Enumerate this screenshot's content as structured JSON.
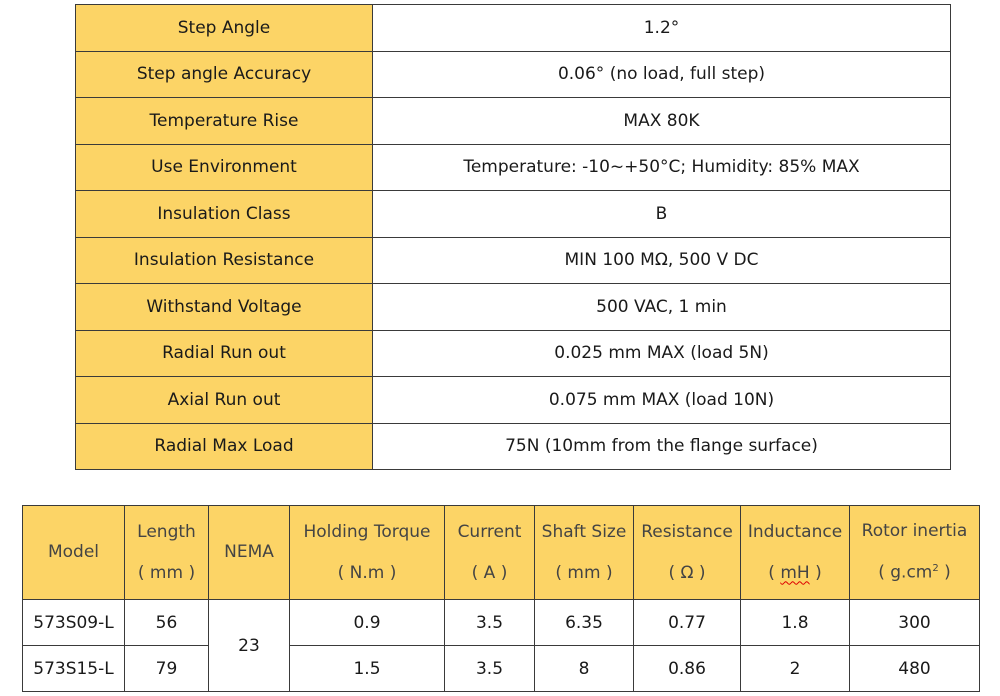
{
  "specs": [
    {
      "label": "Step Angle",
      "value": "1.2°"
    },
    {
      "label": "Step angle Accuracy",
      "value": "0.06°  (no load, full step)"
    },
    {
      "label": "Temperature Rise",
      "value": "MAX 80K"
    },
    {
      "label": "Use Environment",
      "value": "Temperature: -10~+50°C; Humidity: 85% MAX"
    },
    {
      "label": "Insulation Class",
      "value": "B"
    },
    {
      "label": "Insulation Resistance",
      "value": "MIN 100 MΩ, 500 V DC"
    },
    {
      "label": "Withstand Voltage",
      "value": "500 VAC, 1 min"
    },
    {
      "label": "Radial Run out",
      "value": "0.025 mm MAX (load 5N)"
    },
    {
      "label": "Axial Run out",
      "value": "0.075 mm MAX (load 10N)"
    },
    {
      "label": "Radial Max Load",
      "value": "75N (10mm from the flange surface)"
    }
  ],
  "models": {
    "headers": {
      "model": "Model",
      "length": "Length",
      "length_unit": "( mm )",
      "nema": "NEMA",
      "torque": "Holding Torque",
      "torque_unit": "( N.m )",
      "current": "Current",
      "current_unit": "( A )",
      "shaft": "Shaft Size",
      "shaft_unit": "( mm )",
      "resistance": "Resistance",
      "resistance_unit": "( Ω )",
      "inductance": "Inductance",
      "inductance_unit_open": "( ",
      "inductance_unit_mid": "mH",
      "inductance_unit_close": " )",
      "inertia": "Rotor inertia",
      "inertia_unit_open": "( g.cm",
      "inertia_unit_sup": "2",
      "inertia_unit_close": " )"
    },
    "nema_value": "23",
    "rows": [
      {
        "model": "573S09-L",
        "length": "56",
        "torque": "0.9",
        "current": "3.5",
        "shaft": "6.35",
        "resistance": "0.77",
        "inductance": "1.8",
        "inertia": "300"
      },
      {
        "model": "573S15-L",
        "length": "79",
        "torque": "1.5",
        "current": "3.5",
        "shaft": "8",
        "resistance": "0.86",
        "inductance": "2",
        "inertia": "480"
      }
    ]
  },
  "colors": {
    "header_fill": "#fcd466",
    "border": "#3a3a3a"
  }
}
